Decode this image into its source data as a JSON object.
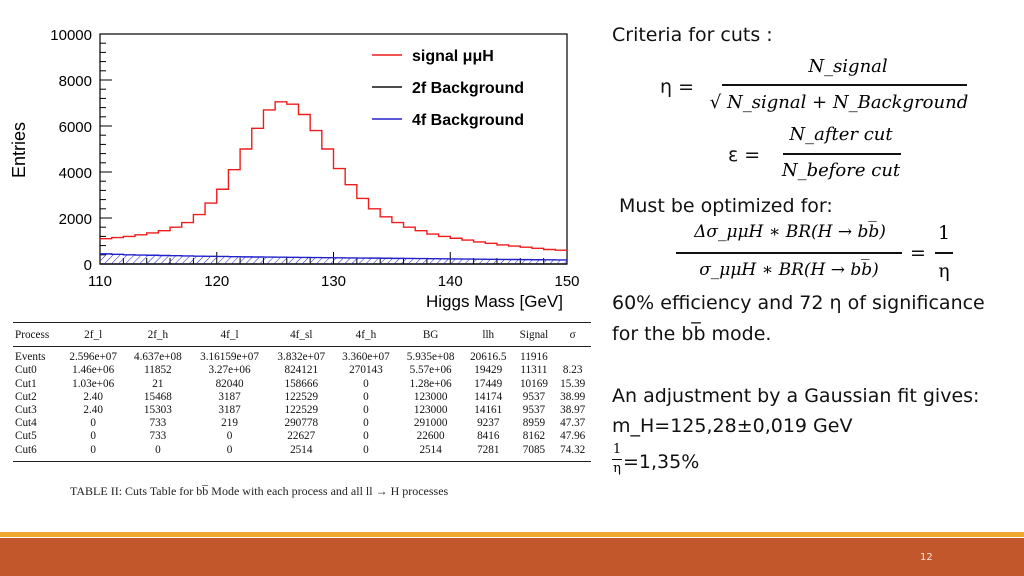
{
  "chart_data": {
    "type": "line",
    "xlabel": "Higgs Mass [GeV]",
    "ylabel": "Entries",
    "xlim": [
      110,
      150
    ],
    "ylim": [
      0,
      10000
    ],
    "x_ticks": [
      "110",
      "120",
      "130",
      "140",
      "150"
    ],
    "y_ticks": [
      "0",
      "2000",
      "4000",
      "6000",
      "8000",
      "10000"
    ],
    "legend_position": "top-right",
    "x": [
      110,
      111,
      112,
      113,
      114,
      115,
      116,
      117,
      118,
      119,
      120,
      121,
      122,
      123,
      124,
      125,
      126,
      127,
      128,
      129,
      130,
      131,
      132,
      133,
      134,
      135,
      136,
      137,
      138,
      139,
      140,
      141,
      142,
      143,
      144,
      145,
      146,
      147,
      148,
      149,
      150
    ],
    "series": [
      {
        "name": "signal μμH",
        "color": "#ee1c1c",
        "style": "step",
        "values": [
          1100,
          1150,
          1200,
          1270,
          1350,
          1450,
          1600,
          1800,
          2150,
          2650,
          3250,
          4100,
          5000,
          5900,
          6700,
          7050,
          6950,
          6500,
          5800,
          5000,
          4150,
          3450,
          2850,
          2400,
          2050,
          1800,
          1600,
          1450,
          1300,
          1200,
          1120,
          1040,
          960,
          900,
          830,
          780,
          730,
          680,
          630,
          600,
          560
        ]
      },
      {
        "name": "2f Background",
        "color": "#111111",
        "style": "line",
        "values": [
          0,
          0,
          0,
          0,
          0,
          0,
          0,
          0,
          0,
          0,
          0,
          0,
          0,
          0,
          0,
          0,
          0,
          0,
          0,
          0,
          0,
          0,
          0,
          0,
          0,
          0,
          0,
          0,
          0,
          0,
          0,
          0,
          0,
          0,
          0,
          0,
          0,
          0,
          0,
          0,
          0
        ]
      },
      {
        "name": "4f Background",
        "color": "#2222cc",
        "style": "step",
        "values": [
          440,
          420,
          400,
          390,
          380,
          370,
          360,
          350,
          340,
          335,
          330,
          320,
          310,
          305,
          300,
          295,
          290,
          285,
          280,
          275,
          270,
          265,
          260,
          255,
          250,
          245,
          240,
          235,
          230,
          225,
          220,
          215,
          210,
          205,
          200,
          195,
          190,
          185,
          180,
          175,
          170
        ]
      }
    ]
  },
  "text": {
    "criteria": "Criteria for cuts :",
    "eta_lhs": "η =",
    "eta_num": "N_signal",
    "eta_den": "√ N_signal + N_Background",
    "eps_lhs": "ε =",
    "eps_num": "N_after cut",
    "eps_den": "N_before cut",
    "optimized": "Must be optimized for:",
    "opt_num": "Δσ_μμH ∗ BR(H → bb̅)",
    "opt_den": "σ_μμH ∗ BR(H → bb̅)",
    "opt_eq": "=",
    "opt_rhs_num": "1",
    "opt_rhs_den": "η",
    "efficiency_line1": "60% efficiency and 72 η of significance",
    "efficiency_line2": "for the bb̅ mode.",
    "adjustment": "An adjustment by a Gaussian fit gives:",
    "mh": "m_H=125,28±0,019 GeV",
    "inv_eta_num": "1",
    "inv_eta_den": "η",
    "inv_eta_val": "=1,35%"
  },
  "table": {
    "columns": [
      "Process",
      "2f_l",
      "2f_h",
      "4f_l",
      "4f_sl",
      "4f_h",
      "BG",
      "llh",
      "Signal",
      "σ"
    ],
    "rows": [
      [
        "Events",
        "2.596e+07",
        "4.637e+08",
        "3.16159e+07",
        "3.832e+07",
        "3.360e+07",
        "5.935e+08",
        "20616.5",
        "11916",
        ""
      ],
      [
        "Cut0",
        "1.46e+06",
        "11852",
        "3.27e+06",
        "824121",
        "270143",
        "5.57e+06",
        "19429",
        "11311",
        "8.23"
      ],
      [
        "Cut1",
        "1.03e+06",
        "21",
        "82040",
        "158666",
        "0",
        "1.28e+06",
        "17449",
        "10169",
        "15.39"
      ],
      [
        "Cut2",
        "2.40",
        "15468",
        "3187",
        "122529",
        "0",
        "123000",
        "14174",
        "9537",
        "38.99"
      ],
      [
        "Cut3",
        "2.40",
        "15303",
        "3187",
        "122529",
        "0",
        "123000",
        "14161",
        "9537",
        "38.97"
      ],
      [
        "Cut4",
        "0",
        "733",
        "219",
        "290778",
        "0",
        "291000",
        "9237",
        "8959",
        "47.37"
      ],
      [
        "Cut5",
        "0",
        "733",
        "0",
        "22627",
        "0",
        "22600",
        "8416",
        "8162",
        "47.96"
      ],
      [
        "Cut6",
        "0",
        "0",
        "0",
        "2514",
        "0",
        "2514",
        "7281",
        "7085",
        "74.32"
      ]
    ],
    "caption": "TABLE II: Cuts Table for bb̅ Mode with each process and all ll → H processes"
  },
  "footer": {
    "page_number": "12",
    "bar_color": "#c1572a",
    "line_color": "#f0a830"
  }
}
